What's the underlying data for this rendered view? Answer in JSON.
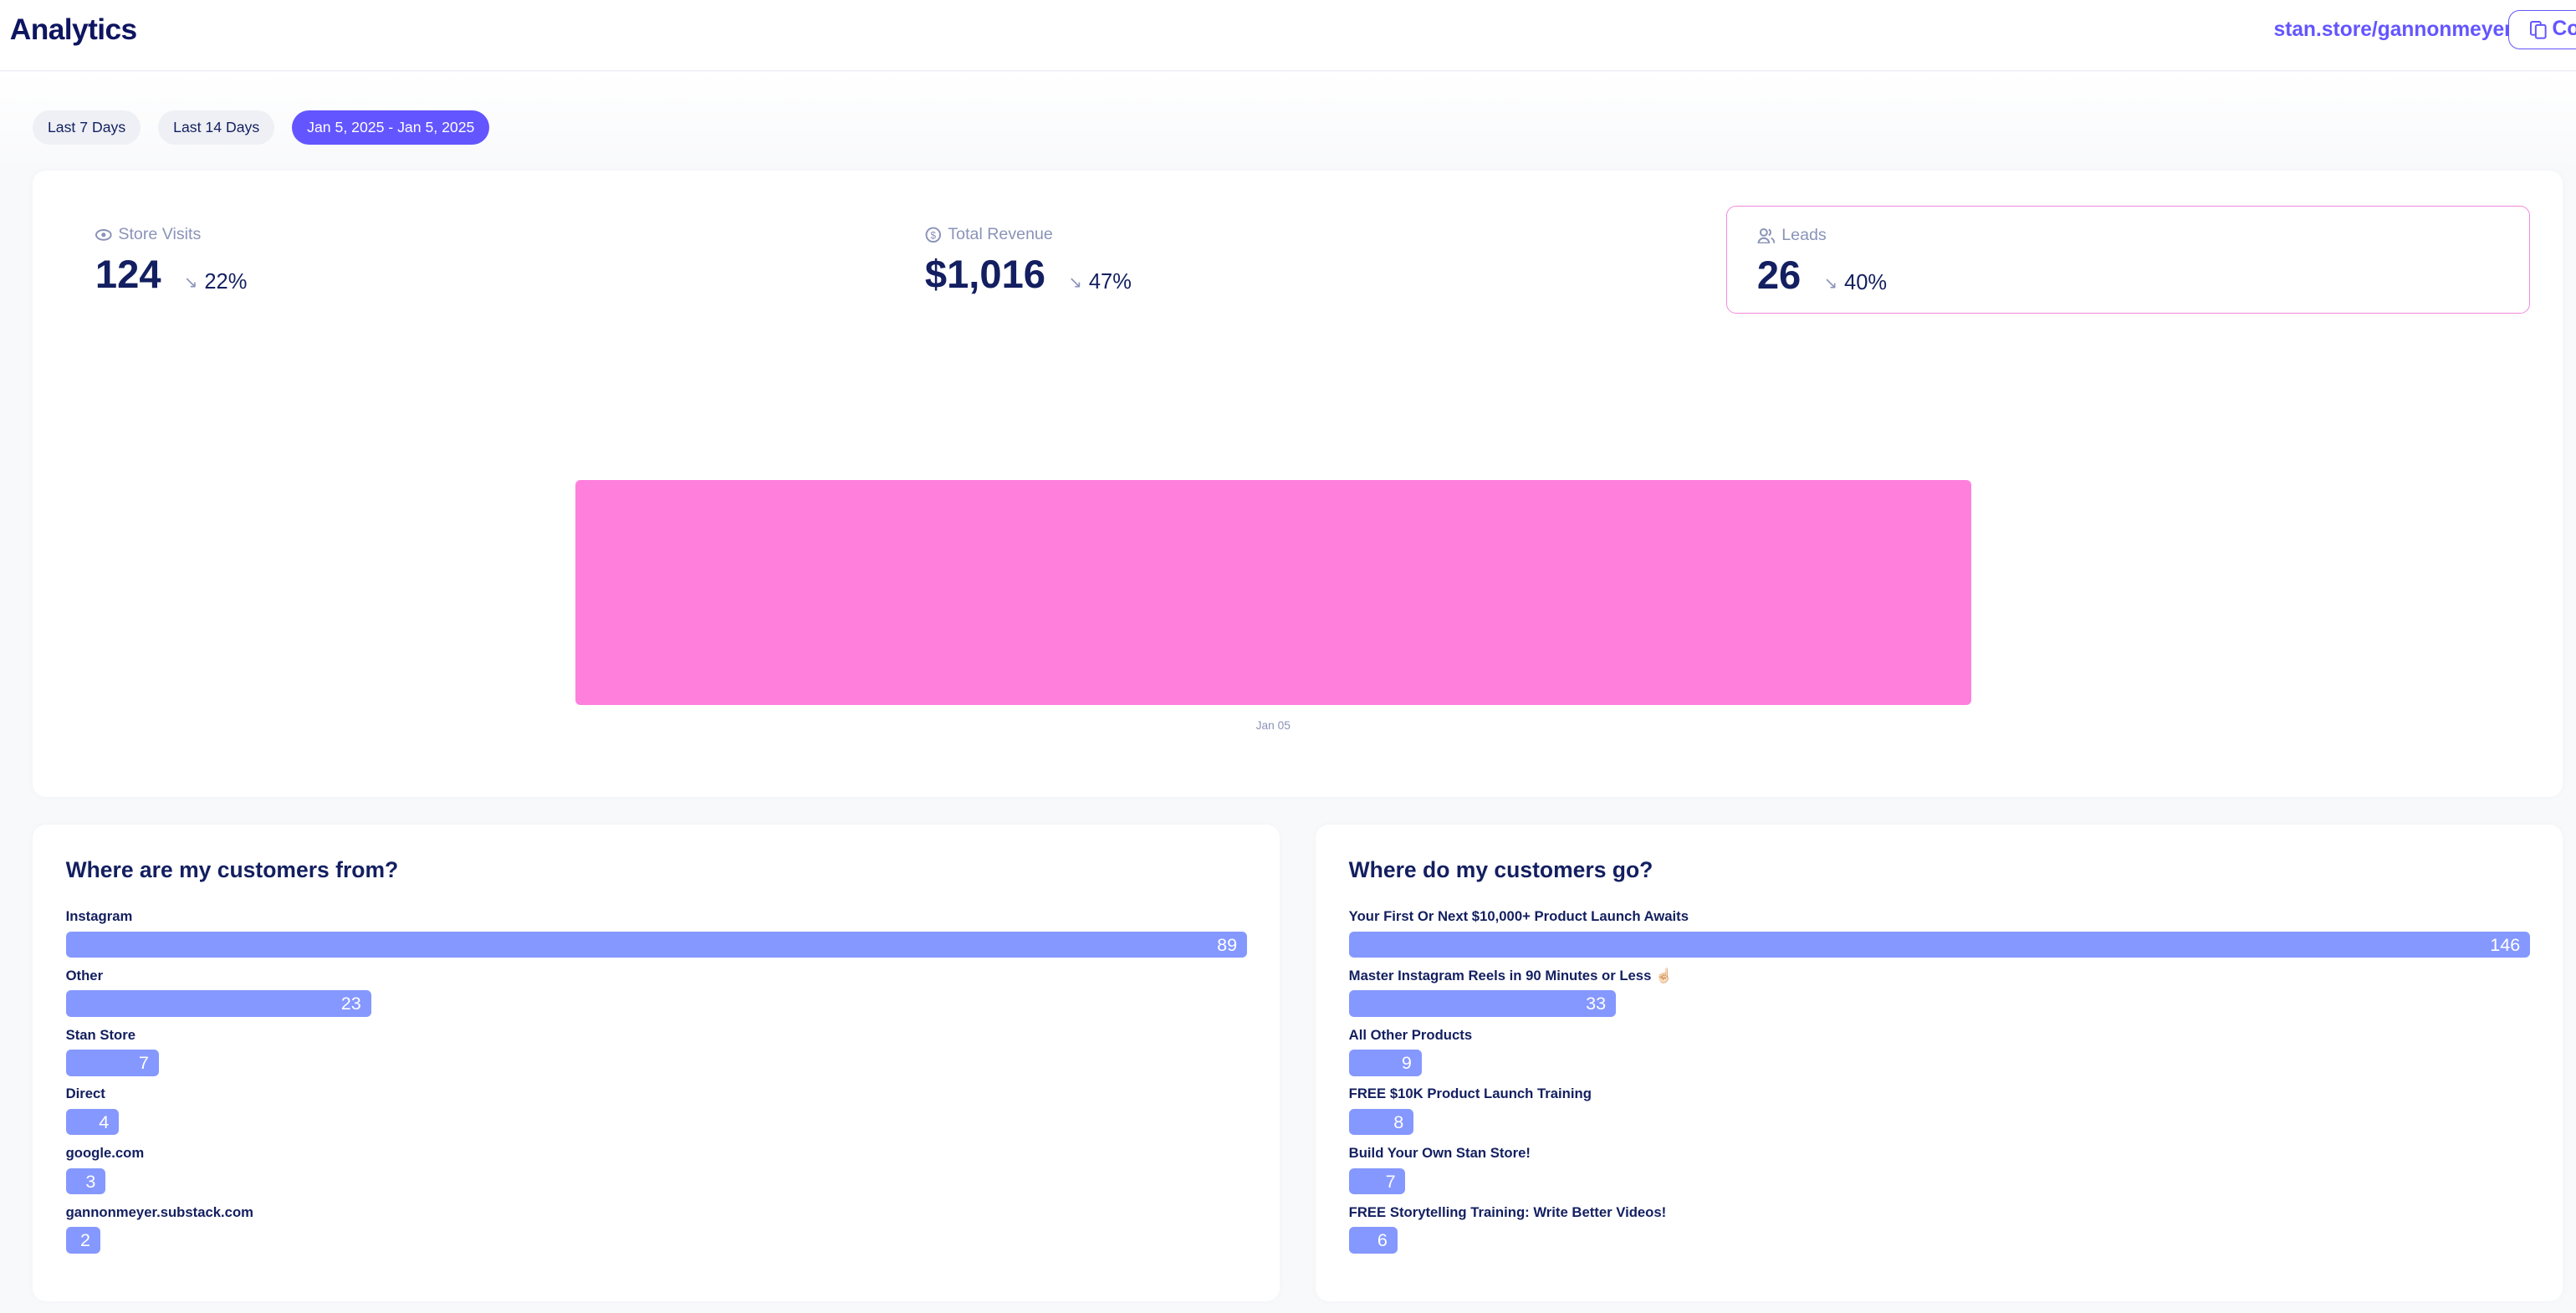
{
  "header": {
    "title": "Analytics",
    "store_link": "stan.store/gannonmeyer",
    "copy_label": "Co"
  },
  "date_filters": [
    {
      "label": "Last 7 Days",
      "active": false
    },
    {
      "label": "Last 14 Days",
      "active": false
    },
    {
      "label": "Jan 5, 2025 - Jan 5, 2025",
      "active": true
    }
  ],
  "stats": [
    {
      "label": "Store Visits",
      "value": "124",
      "change": "22%",
      "icon": "eye-icon"
    },
    {
      "label": "Total Revenue",
      "value": "$1,016",
      "change": "47%",
      "icon": "dollar-circle-icon"
    },
    {
      "label": "Leads",
      "value": "26",
      "change": "40%",
      "icon": "users-icon",
      "selected": true
    }
  ],
  "chart_data": {
    "type": "bar",
    "series_name": "Leads",
    "categories": [
      "Jan 05"
    ],
    "values": [
      26
    ],
    "color": "#ff80dc",
    "xlabel": "",
    "ylabel": "",
    "ylim": [
      0,
      26
    ],
    "grid": false
  },
  "sources": {
    "title": "Where are my customers from?",
    "items": [
      {
        "label": "Instagram",
        "value": 89
      },
      {
        "label": "Other",
        "value": 23
      },
      {
        "label": "Stan Store",
        "value": 7
      },
      {
        "label": "Direct",
        "value": 4
      },
      {
        "label": "google.com",
        "value": 3
      },
      {
        "label": "gannonmeyer.substack.com",
        "value": 2
      }
    ]
  },
  "destinations": {
    "title": "Where do my customers go?",
    "items": [
      {
        "label": "Your First Or Next $10,000+ Product Launch Awaits",
        "value": 146
      },
      {
        "label": "Master Instagram Reels in 90 Minutes or Less ☝🏻",
        "value": 33
      },
      {
        "label": "All Other Products",
        "value": 9
      },
      {
        "label": "FREE $10K Product Launch Training",
        "value": 8
      },
      {
        "label": "Build Your Own Stan Store!",
        "value": 7
      },
      {
        "label": "FREE Storytelling Training: Write Better Videos!",
        "value": 6
      }
    ]
  },
  "colors": {
    "accent": "#6355ff",
    "bar": "#8598ff",
    "chart": "#ff80dc",
    "text": "#131f60"
  }
}
